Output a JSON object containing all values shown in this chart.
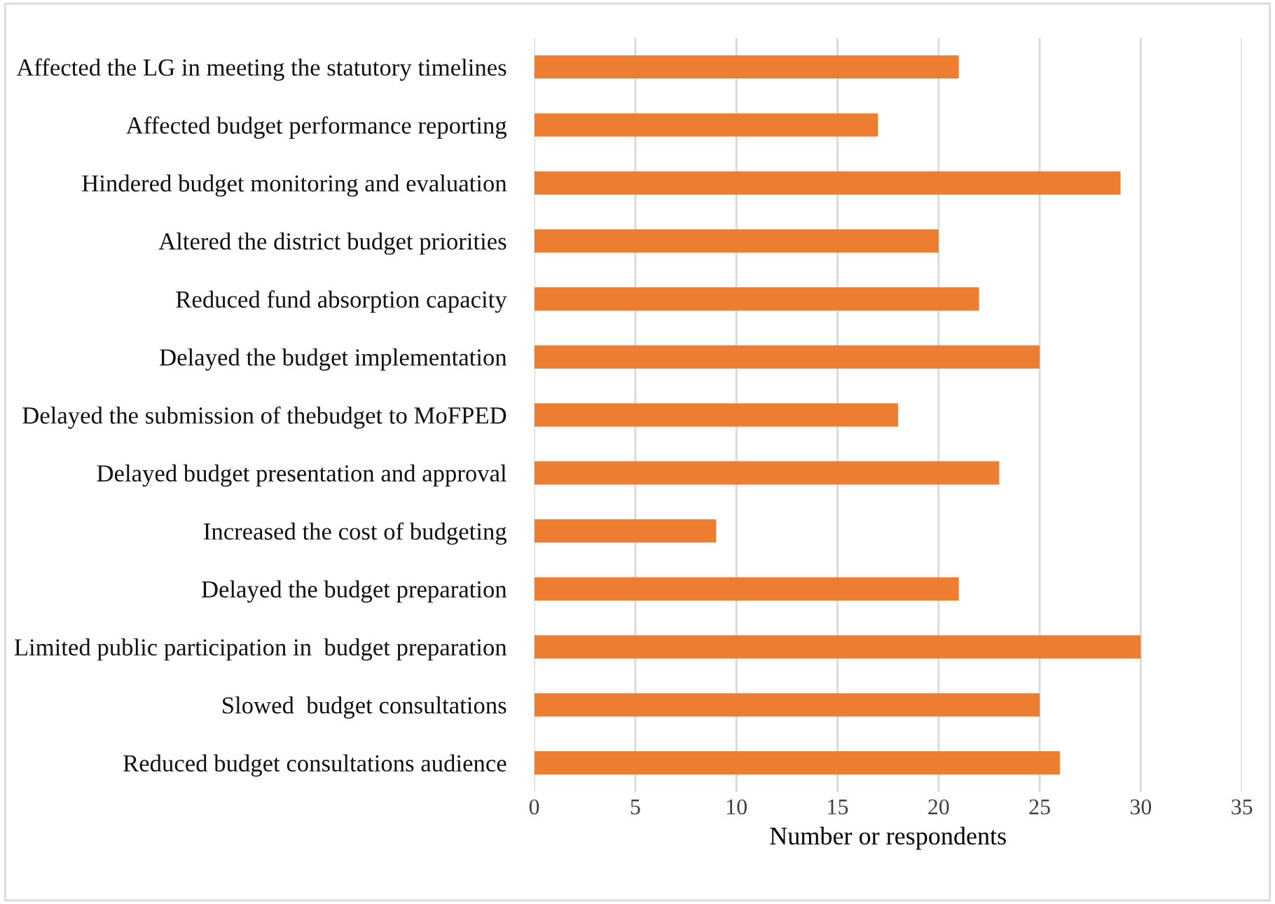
{
  "chart_data": {
    "type": "bar",
    "orientation": "horizontal",
    "categories": [
      "Affected the LG in meeting the statutory timelines",
      "Affected budget performance reporting",
      "Hindered budget monitoring and evaluation",
      "Altered the district budget priorities",
      "Reduced fund absorption capacity",
      "Delayed the budget implementation",
      "Delayed the submission of thebudget to MoFPED",
      "Delayed budget presentation and approval",
      "Increased the cost of budgeting",
      "Delayed the budget preparation",
      "Limited public participation in  budget preparation",
      "Slowed  budget consultations",
      "Reduced budget consultations audience"
    ],
    "values": [
      21,
      17,
      29,
      20,
      22,
      25,
      18,
      23,
      9,
      21,
      30,
      25,
      26
    ],
    "color": "#ed7d31",
    "xlabel": "Number or respondents",
    "xlim": [
      0,
      35
    ],
    "xticks": [
      0,
      5,
      10,
      15,
      20,
      25,
      30,
      35
    ],
    "grid": "x",
    "legend": false
  }
}
